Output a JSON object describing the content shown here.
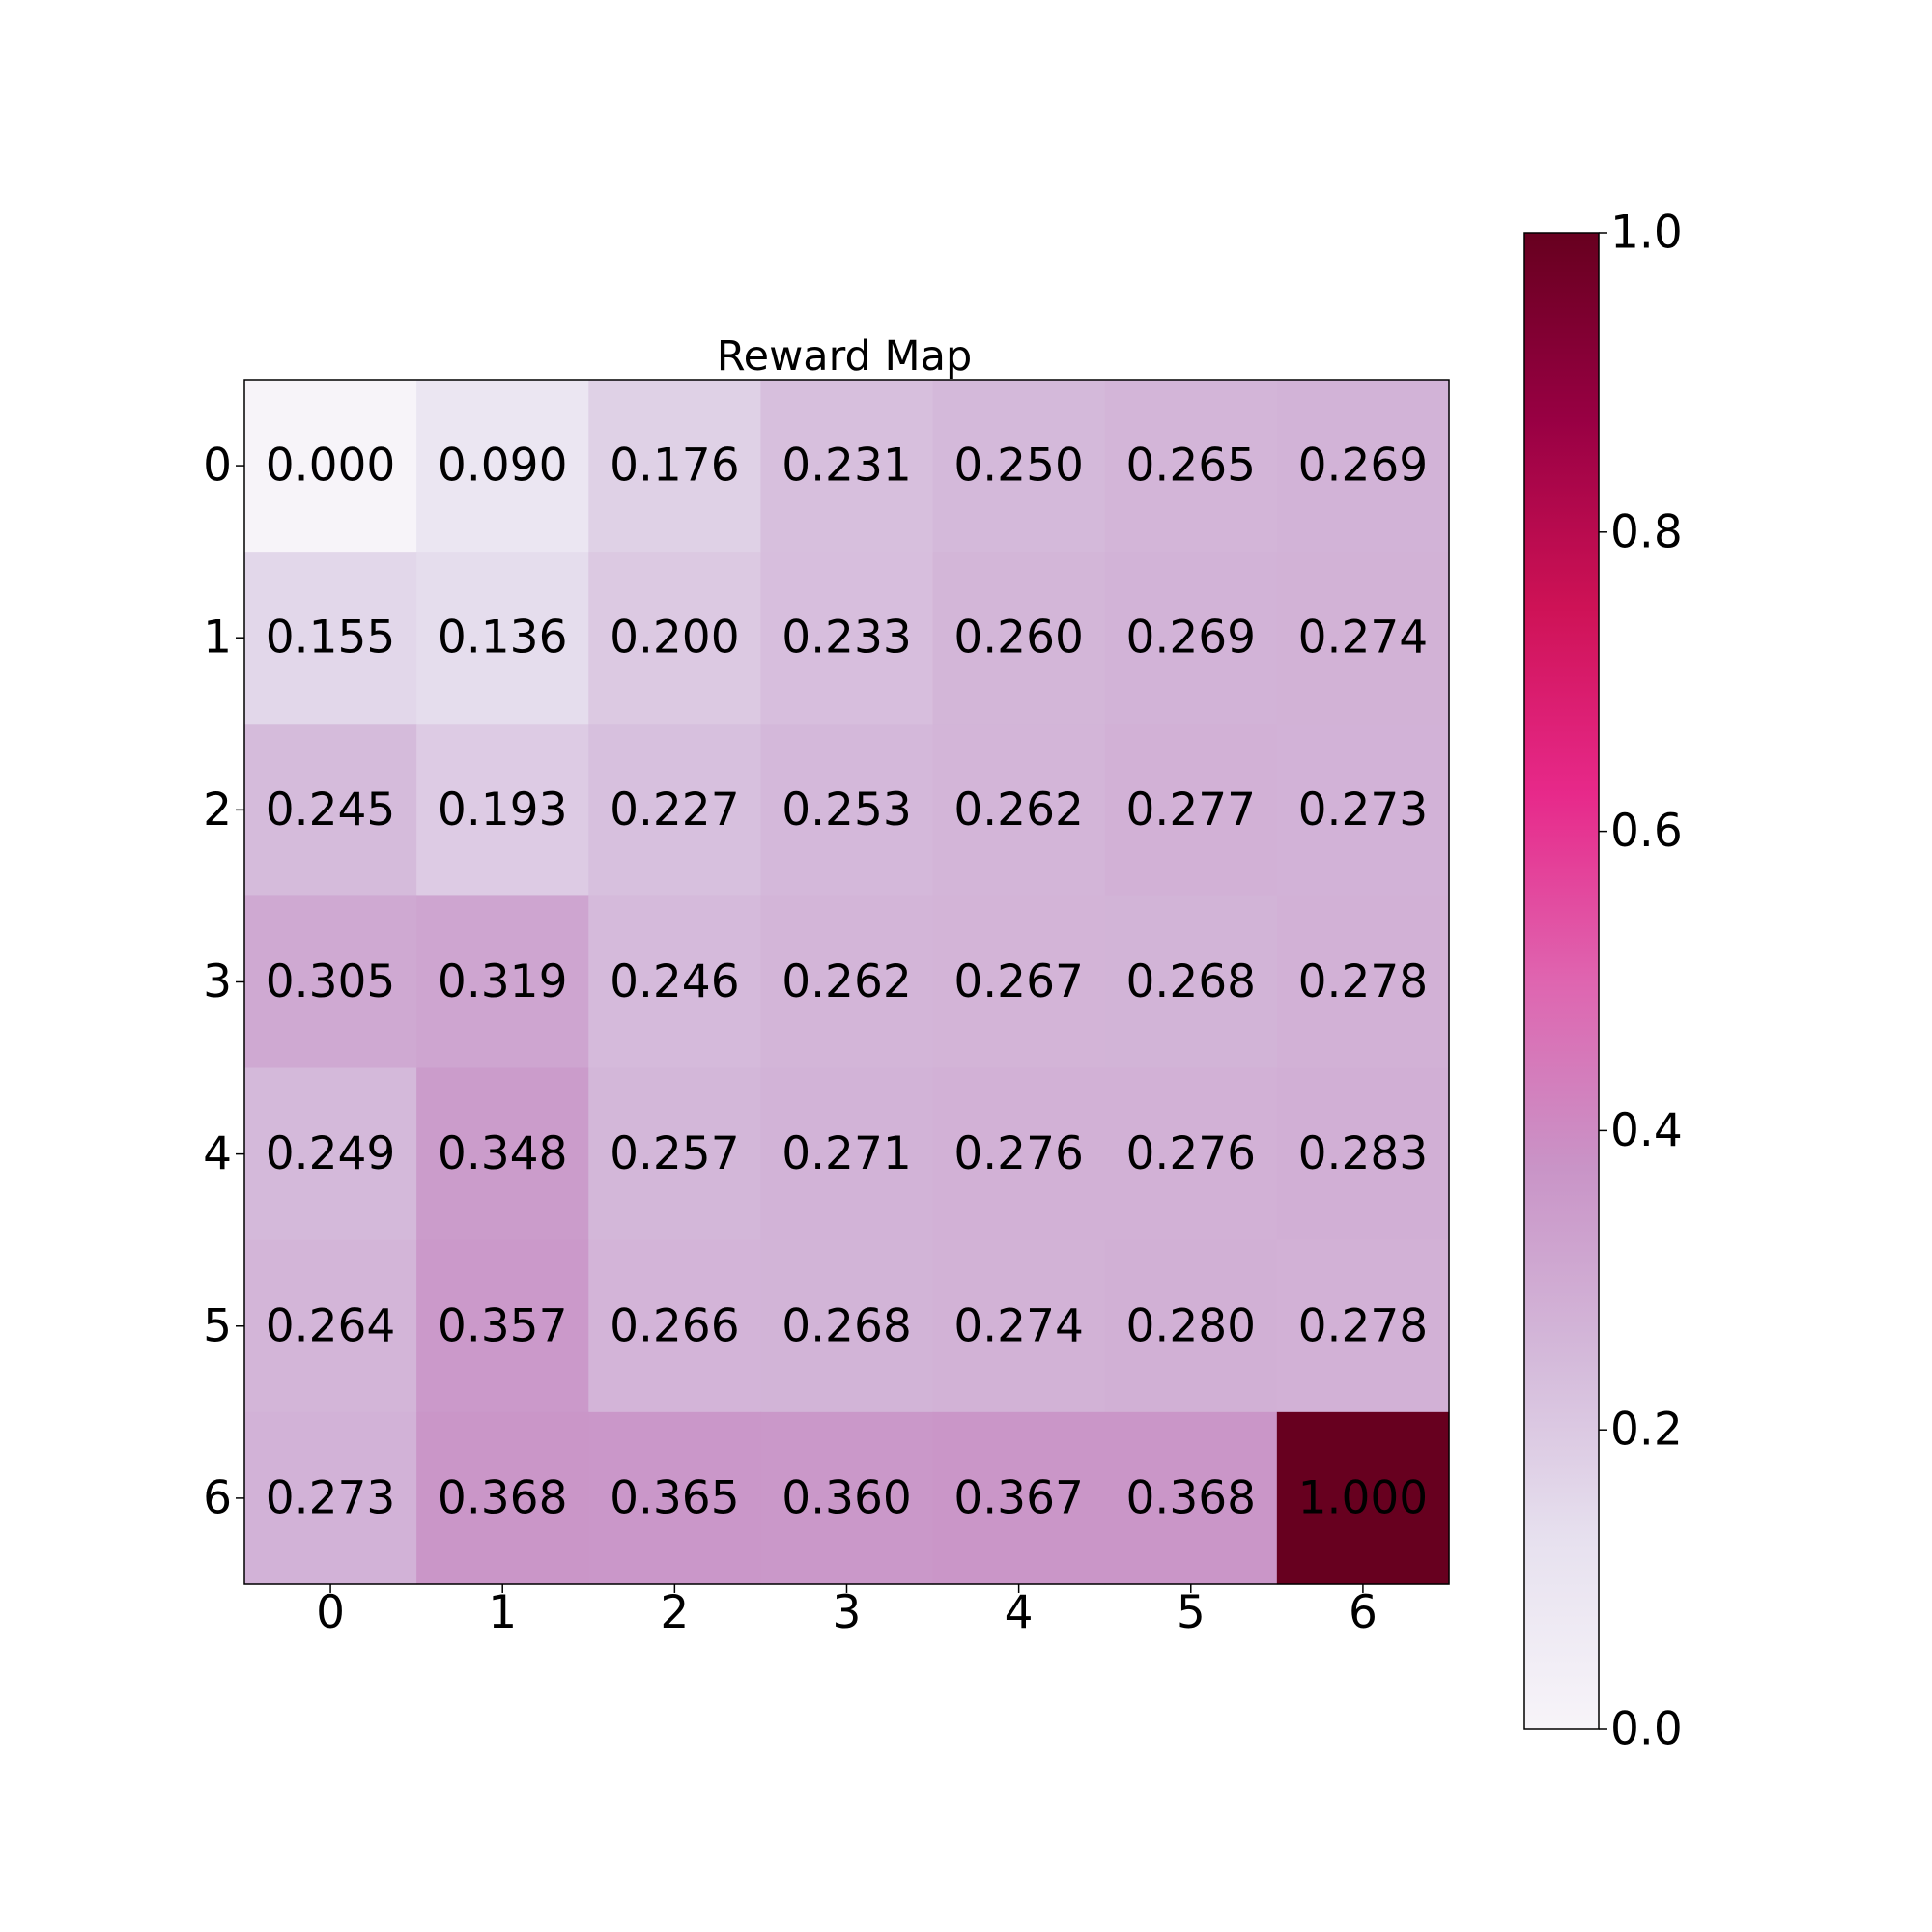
{
  "chart_data": {
    "type": "heatmap",
    "title": "Reward Map",
    "xlabel": "",
    "ylabel": "",
    "x_categories": [
      "0",
      "1",
      "2",
      "3",
      "4",
      "5",
      "6"
    ],
    "y_categories": [
      "0",
      "1",
      "2",
      "3",
      "4",
      "5",
      "6"
    ],
    "values": [
      [
        0.0,
        0.09,
        0.176,
        0.231,
        0.25,
        0.265,
        0.269
      ],
      [
        0.155,
        0.136,
        0.2,
        0.233,
        0.26,
        0.269,
        0.274
      ],
      [
        0.245,
        0.193,
        0.227,
        0.253,
        0.262,
        0.277,
        0.273
      ],
      [
        0.305,
        0.319,
        0.246,
        0.262,
        0.267,
        0.268,
        0.278
      ],
      [
        0.249,
        0.348,
        0.257,
        0.271,
        0.276,
        0.276,
        0.283
      ],
      [
        0.264,
        0.357,
        0.266,
        0.268,
        0.274,
        0.28,
        0.278
      ],
      [
        0.273,
        0.368,
        0.365,
        0.36,
        0.367,
        0.368,
        1.0
      ]
    ],
    "cell_labels": [
      [
        "0.000",
        "0.090",
        "0.176",
        "0.231",
        "0.250",
        "0.265",
        "0.269"
      ],
      [
        "0.155",
        "0.136",
        "0.200",
        "0.233",
        "0.260",
        "0.269",
        "0.274"
      ],
      [
        "0.245",
        "0.193",
        "0.227",
        "0.253",
        "0.262",
        "0.277",
        "0.273"
      ],
      [
        "0.305",
        "0.319",
        "0.246",
        "0.262",
        "0.267",
        "0.268",
        "0.278"
      ],
      [
        "0.249",
        "0.348",
        "0.257",
        "0.271",
        "0.276",
        "0.276",
        "0.283"
      ],
      [
        "0.264",
        "0.357",
        "0.266",
        "0.268",
        "0.274",
        "0.280",
        "0.278"
      ],
      [
        "0.273",
        "0.368",
        "0.365",
        "0.360",
        "0.367",
        "0.368",
        "1.000"
      ]
    ],
    "colorbar": {
      "range": [
        0.0,
        1.0
      ],
      "ticks": [
        0.0,
        0.2,
        0.4,
        0.6,
        0.8,
        1.0
      ],
      "tick_labels": [
        "0.0",
        "0.2",
        "0.4",
        "0.6",
        "0.8",
        "1.0"
      ],
      "position": "right"
    },
    "colormap": [
      "#f7f4f9",
      "#e7e1ef",
      "#d4b9da",
      "#c994c7",
      "#df65b0",
      "#e7298a",
      "#ce1256",
      "#980043",
      "#67001f"
    ],
    "grid": false
  }
}
